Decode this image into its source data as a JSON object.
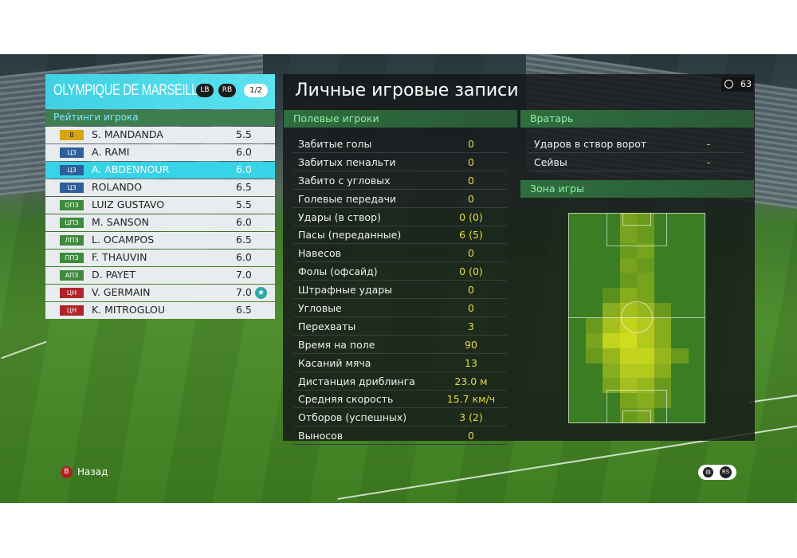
{
  "team": {
    "name": "OLYMPIQUE DE MARSEILLE",
    "lb": "LB",
    "rb": "RB",
    "page": "1/2"
  },
  "ratings_title": "Рейтинги игрока",
  "players": [
    {
      "pos": "В",
      "name": "S. MANDANDA",
      "rating": "5.5",
      "pos_color": "#d8a40f",
      "pos_text": "#222",
      "selected": false
    },
    {
      "pos": "ЦЗ",
      "name": "A. RAMI",
      "rating": "6.0",
      "pos_color": "#2f5f9a",
      "pos_text": "#fff",
      "selected": false
    },
    {
      "pos": "ЦЗ",
      "name": "A. ABDENNOUR",
      "rating": "6.0",
      "pos_color": "#2f5f9a",
      "pos_text": "#fff",
      "selected": true
    },
    {
      "pos": "ЦЗ",
      "name": "ROLANDO",
      "rating": "6.5",
      "pos_color": "#2f5f9a",
      "pos_text": "#fff",
      "selected": false
    },
    {
      "pos": "ОПЗ",
      "name": "LUIZ GUSTAVO",
      "rating": "5.5",
      "pos_color": "#3d8a3d",
      "pos_text": "#fff",
      "selected": false
    },
    {
      "pos": "ЦПЗ",
      "name": "M. SANSON",
      "rating": "6.0",
      "pos_color": "#3d8a3d",
      "pos_text": "#fff",
      "selected": false
    },
    {
      "pos": "ЛПЗ",
      "name": "L. OCAMPOS",
      "rating": "6.5",
      "pos_color": "#3d8a3d",
      "pos_text": "#fff",
      "selected": false
    },
    {
      "pos": "ППЗ",
      "name": "F. THAUVIN",
      "rating": "6.0",
      "pos_color": "#3d8a3d",
      "pos_text": "#fff",
      "selected": false
    },
    {
      "pos": "АПЗ",
      "name": "D. PAYET",
      "rating": "7.0",
      "pos_color": "#3d8a3d",
      "pos_text": "#fff",
      "selected": false
    },
    {
      "pos": "ЦН",
      "name": "V. GERMAIN",
      "rating": "7.0",
      "pos_color": "#b0242a",
      "pos_text": "#fff",
      "selected": false,
      "star": "★"
    },
    {
      "pos": "ЦН",
      "name": "K. MITROGLOU",
      "rating": "6.5",
      "pos_color": "#b0242a",
      "pos_text": "#fff",
      "selected": false
    }
  ],
  "title": "Личные игровые записи",
  "timer": "63",
  "field_section": "Полевые игроки",
  "field_stats": [
    {
      "label": "Забитые голы",
      "value": "0"
    },
    {
      "label": "Забитых пенальти",
      "value": "0"
    },
    {
      "label": "Забито с угловых",
      "value": "0"
    },
    {
      "label": "Голевые передачи",
      "value": "0"
    },
    {
      "label": "Удары (в створ)",
      "value": "0 (0)"
    },
    {
      "label": "Пасы (переданные)",
      "value": "6 (5)"
    },
    {
      "label": "Навесов",
      "value": "0"
    },
    {
      "label": "Фолы (офсайд)",
      "value": "0 (0)"
    },
    {
      "label": "Штрафные удары",
      "value": "0"
    },
    {
      "label": "Угловые",
      "value": "0"
    },
    {
      "label": "Перехваты",
      "value": "3"
    },
    {
      "label": "Время на поле",
      "value": "90"
    },
    {
      "label": "Касаний мяча",
      "value": "13"
    },
    {
      "label": "Дистанция дриблинга",
      "value": "23.0 м"
    },
    {
      "label": "Средняя скорость",
      "value": "15.7 км/ч"
    },
    {
      "label": "Отборов (успешных)",
      "value": "3 (2)"
    },
    {
      "label": "Выносов",
      "value": "0"
    }
  ],
  "gk_section": "Вратарь",
  "gk_stats": [
    {
      "label": "Ударов в створ ворот",
      "value": "-"
    },
    {
      "label": "Сейвы",
      "value": "-"
    }
  ],
  "zone_section": "Зона игры",
  "heatmap_intensity": [
    [
      0,
      0,
      0,
      0.4,
      0.3,
      0,
      0,
      0
    ],
    [
      0,
      0,
      0,
      0.4,
      0.3,
      0,
      0,
      0
    ],
    [
      0,
      0,
      0,
      0.3,
      0.4,
      0,
      0,
      0
    ],
    [
      0,
      0,
      0,
      0.4,
      0.3,
      0,
      0,
      0
    ],
    [
      0,
      0,
      0,
      0.3,
      0.4,
      0,
      0,
      0
    ],
    [
      0,
      0,
      0.2,
      0.5,
      0.4,
      0,
      0,
      0
    ],
    [
      0,
      0,
      0.5,
      0.7,
      0.6,
      0.3,
      0,
      0
    ],
    [
      0,
      0.3,
      0.7,
      0.9,
      0.8,
      0.5,
      0,
      0
    ],
    [
      0,
      0.4,
      0.9,
      1.0,
      0.8,
      0.5,
      0,
      0
    ],
    [
      0,
      0.3,
      0.6,
      0.9,
      0.9,
      0.6,
      0.3,
      0
    ],
    [
      0,
      0,
      0.5,
      0.8,
      0.8,
      0.5,
      0,
      0
    ],
    [
      0,
      0,
      0.4,
      0.7,
      0.6,
      0.3,
      0,
      0
    ],
    [
      0,
      0,
      0,
      0.4,
      0.5,
      0.3,
      0,
      0
    ],
    [
      0,
      0,
      0,
      0.3,
      0.4,
      0,
      0,
      0
    ]
  ],
  "footer": {
    "back_label": "Назад",
    "back_btn": "B",
    "rs_btn": "RS",
    "chat_btn": "▤"
  }
}
